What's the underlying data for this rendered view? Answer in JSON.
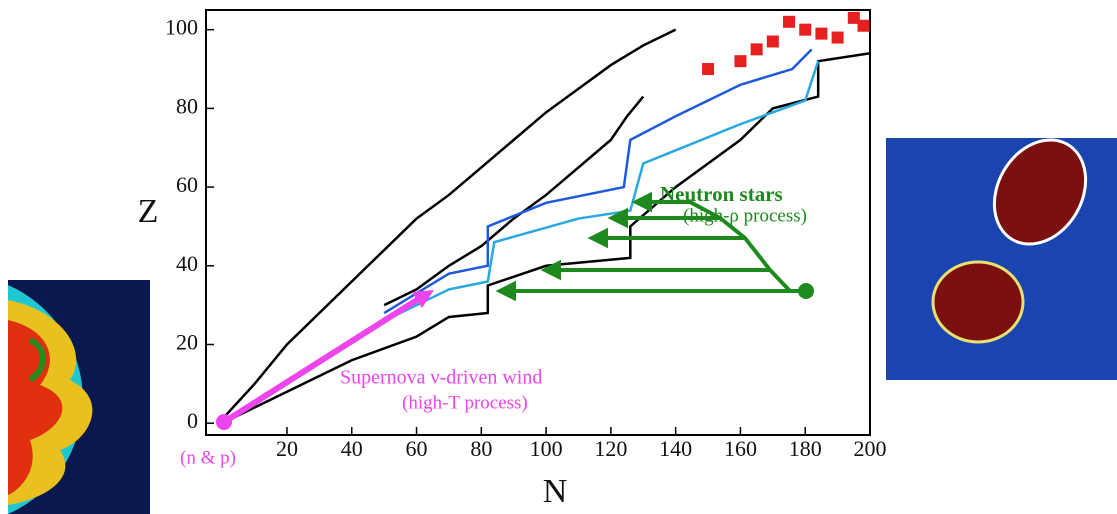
{
  "chart_data": {
    "type": "line",
    "xlabel": "N",
    "ylabel": "Z",
    "xlim": [
      -5,
      200
    ],
    "ylim": [
      -3,
      105
    ],
    "xticks": [
      20,
      40,
      60,
      80,
      100,
      120,
      140,
      160,
      180,
      200
    ],
    "yticks": [
      0,
      20,
      40,
      60,
      80,
      100
    ],
    "grid": false,
    "annotations": [
      "Neutron stars",
      "(high-ρ process)",
      "Supernova ν-driven wind",
      "(high-T process)",
      "(n & p)"
    ],
    "series": [
      {
        "color": "#000000",
        "style": "line",
        "x": [
          0,
          10,
          20,
          30,
          40,
          50,
          60,
          70,
          80,
          90,
          100,
          110,
          120,
          130,
          140
        ],
        "values": [
          1,
          10,
          20,
          28,
          36,
          44,
          52,
          58,
          65,
          72,
          79,
          85,
          91,
          96,
          100
        ]
      },
      {
        "color": "#000000",
        "style": "line",
        "x": [
          50,
          60,
          70,
          80,
          90,
          100,
          110,
          120,
          125,
          130
        ],
        "values": [
          30,
          34,
          40,
          45,
          52,
          58,
          65,
          72,
          78,
          83
        ]
      },
      {
        "color": "#000000",
        "style": "line",
        "x": [
          0,
          20,
          40,
          60,
          70,
          82,
          82,
          100,
          126,
          126,
          140,
          160,
          170,
          184,
          184,
          200
        ],
        "values": [
          0,
          8,
          16,
          22,
          27,
          28,
          35,
          40,
          42,
          50,
          60,
          72,
          80,
          83,
          92,
          94
        ]
      },
      {
        "color": "#1e5adc",
        "style": "line",
        "x": [
          50,
          60,
          70,
          82,
          82,
          100,
          124,
          126,
          140,
          160,
          176,
          182
        ],
        "values": [
          28,
          33,
          38,
          40,
          50,
          56,
          60,
          72,
          78,
          86,
          90,
          95
        ]
      },
      {
        "color": "#29a8e0",
        "style": "line",
        "x": [
          50,
          70,
          82,
          84,
          110,
          126,
          130,
          160,
          180,
          184
        ],
        "values": [
          26,
          34,
          36,
          46,
          52,
          54,
          66,
          76,
          82,
          92
        ]
      },
      {
        "color": "#e62020",
        "style": "points",
        "x": [
          150,
          160,
          165,
          170,
          175,
          180,
          185,
          190,
          195,
          198
        ],
        "values": [
          90,
          92,
          95,
          97,
          102,
          100,
          99,
          98,
          103,
          101
        ]
      }
    ]
  }
}
